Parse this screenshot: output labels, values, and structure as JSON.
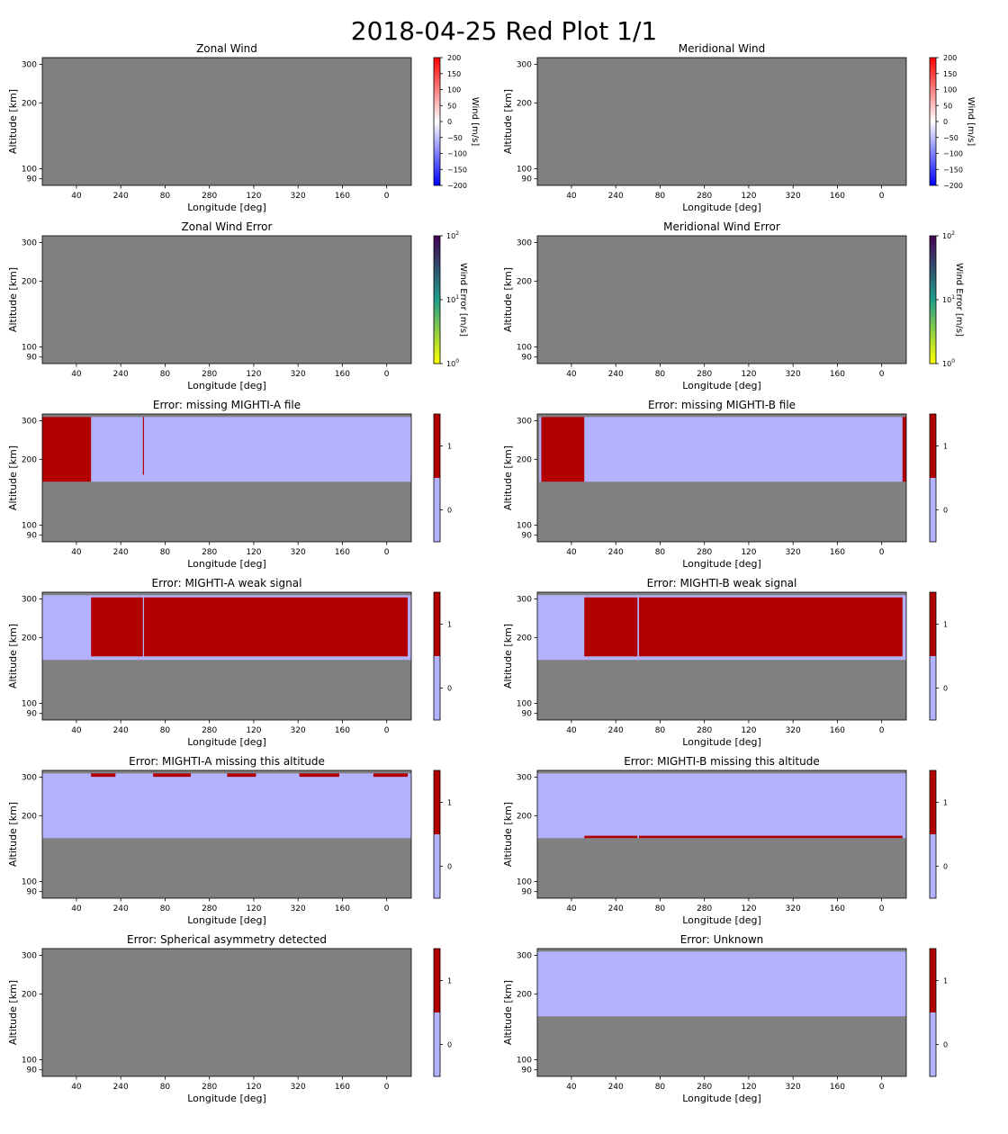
{
  "figure": {
    "title": "2018-04-25 Red Plot 1/1"
  },
  "colors": {
    "nodata": "#808080",
    "flag_off": "#b2b2ff",
    "flag_on": "#b20000",
    "wind_cmap": [
      "#0000ff",
      "#ffffff",
      "#ff0000"
    ],
    "error_cmap": [
      "#ffff00",
      "#1f9e89",
      "#440154"
    ]
  },
  "shared_axes": {
    "xlabel": "Longitude [deg]",
    "ylabel": "Altitude [km]",
    "x_ticklabels": [
      "40",
      "240",
      "80",
      "280",
      "120",
      "320",
      "160",
      "0"
    ],
    "x_tick_positions_deg": [
      40,
      240,
      440,
      640,
      840,
      1040,
      1240,
      1440
    ],
    "xlim": [
      -114,
      1551
    ],
    "yscale": "log",
    "y_ticklabels": [
      "90",
      "100",
      "200",
      "300"
    ],
    "y_tick_values": [
      90,
      100,
      200,
      300
    ],
    "ylim": [
      84,
      322
    ]
  },
  "chart_data": [
    {
      "type": "heatmap",
      "title": "Zonal Wind",
      "panel": "zonal-wind",
      "colorbar": {
        "kind": "wind",
        "label": "Wind [m/s]",
        "range": [
          -200,
          200
        ],
        "ticklabels": [
          "−200",
          "−150",
          "−100",
          "−50",
          "0",
          "50",
          "100",
          "150",
          "200"
        ],
        "tick_values": [
          -200,
          -150,
          -100,
          -50,
          0,
          50,
          100,
          150,
          200
        ]
      },
      "values_note": "all masked (no data)",
      "regions": []
    },
    {
      "type": "heatmap",
      "title": "Meridional Wind",
      "panel": "meridional-wind",
      "colorbar": {
        "kind": "wind",
        "label": "Wind [m/s]",
        "range": [
          -200,
          200
        ],
        "ticklabels": [
          "−200",
          "−150",
          "−100",
          "−50",
          "0",
          "50",
          "100",
          "150",
          "200"
        ],
        "tick_values": [
          -200,
          -150,
          -100,
          -50,
          0,
          50,
          100,
          150,
          200
        ]
      },
      "values_note": "all masked (no data)",
      "regions": []
    },
    {
      "type": "heatmap",
      "title": "Zonal Wind Error",
      "panel": "zonal-wind-error",
      "colorbar": {
        "kind": "error",
        "label": "Wind Error [m/s]",
        "scale": "log",
        "range": [
          1,
          100
        ],
        "ticklabels": [
          {
            "base": "10",
            "exp": "0"
          },
          {
            "base": "10",
            "exp": "1"
          },
          {
            "base": "10",
            "exp": "2"
          }
        ],
        "tick_values": [
          1,
          10,
          100
        ]
      },
      "values_note": "all masked (no data)",
      "regions": []
    },
    {
      "type": "heatmap",
      "title": "Meridional Wind Error",
      "panel": "meridional-wind-error",
      "colorbar": {
        "kind": "error",
        "label": "Wind Error [m/s]",
        "scale": "log",
        "range": [
          1,
          100
        ],
        "ticklabels": [
          {
            "base": "10",
            "exp": "0"
          },
          {
            "base": "10",
            "exp": "1"
          },
          {
            "base": "10",
            "exp": "2"
          }
        ],
        "tick_values": [
          1,
          10,
          100
        ]
      },
      "values_note": "all masked (no data)",
      "regions": []
    },
    {
      "type": "heatmap",
      "title": "Error: missing MIGHTI-A file",
      "panel": "missing-mighti-a-file",
      "colorbar": {
        "kind": "flag",
        "ticklabels": [
          "0",
          "1"
        ],
        "tick_values": [
          0,
          1
        ],
        "range": [
          -0.5,
          1.5
        ]
      },
      "regions": [
        {
          "value": 0,
          "lon": [
            -114,
            1551
          ],
          "alt": [
            158,
            312
          ]
        },
        {
          "value": 1,
          "lon": [
            -114,
            106
          ],
          "alt": [
            158,
            312
          ]
        },
        {
          "value": 1,
          "lon": [
            340,
            345
          ],
          "alt": [
            170,
            312
          ]
        }
      ]
    },
    {
      "type": "heatmap",
      "title": "Error: missing MIGHTI-B file",
      "panel": "missing-mighti-b-file",
      "colorbar": {
        "kind": "flag",
        "ticklabels": [
          "0",
          "1"
        ],
        "tick_values": [
          0,
          1
        ],
        "range": [
          -0.5,
          1.5
        ]
      },
      "regions": [
        {
          "value": 0,
          "lon": [
            -105,
            1551
          ],
          "alt": [
            158,
            312
          ]
        },
        {
          "value": 1,
          "lon": [
            -96,
            98
          ],
          "alt": [
            158,
            312
          ]
        },
        {
          "value": 1,
          "lon": [
            1534,
            1551
          ],
          "alt": [
            158,
            312
          ]
        }
      ]
    },
    {
      "type": "heatmap",
      "title": "Error: MIGHTI-A weak signal",
      "panel": "mighti-a-weak-signal",
      "colorbar": {
        "kind": "flag",
        "ticklabels": [
          "0",
          "1"
        ],
        "tick_values": [
          0,
          1
        ],
        "range": [
          -0.5,
          1.5
        ]
      },
      "regions": [
        {
          "value": 0,
          "lon": [
            -114,
            1551
          ],
          "alt": [
            158,
            312
          ]
        },
        {
          "value": 1,
          "lon": [
            106,
            340
          ],
          "alt": [
            164,
            305
          ]
        },
        {
          "value": 1,
          "lon": [
            345,
            1535
          ],
          "alt": [
            164,
            305
          ]
        }
      ]
    },
    {
      "type": "heatmap",
      "title": "Error: MIGHTI-B weak signal",
      "panel": "mighti-b-weak-signal",
      "colorbar": {
        "kind": "flag",
        "ticklabels": [
          "0",
          "1"
        ],
        "tick_values": [
          0,
          1
        ],
        "range": [
          -0.5,
          1.5
        ]
      },
      "regions": [
        {
          "value": 0,
          "lon": [
            -114,
            1551
          ],
          "alt": [
            158,
            312
          ]
        },
        {
          "value": 1,
          "lon": [
            98,
            338
          ],
          "alt": [
            164,
            305
          ]
        },
        {
          "value": 1,
          "lon": [
            345,
            1534
          ],
          "alt": [
            164,
            305
          ]
        }
      ]
    },
    {
      "type": "heatmap",
      "title": "Error: MIGHTI-A missing this altitude",
      "panel": "mighti-a-missing-altitude",
      "colorbar": {
        "kind": "flag",
        "ticklabels": [
          "0",
          "1"
        ],
        "tick_values": [
          0,
          1
        ],
        "range": [
          -0.5,
          1.5
        ]
      },
      "regions": [
        {
          "value": 0,
          "lon": [
            -114,
            1551
          ],
          "alt": [
            158,
            312
          ]
        },
        {
          "value": 1,
          "lon": [
            106,
            216
          ],
          "alt": [
            301,
            312
          ]
        },
        {
          "value": 1,
          "lon": [
            386,
            556
          ],
          "alt": [
            301,
            312
          ]
        },
        {
          "value": 1,
          "lon": [
            720,
            850
          ],
          "alt": [
            301,
            312
          ]
        },
        {
          "value": 1,
          "lon": [
            1046,
            1226
          ],
          "alt": [
            301,
            312
          ]
        },
        {
          "value": 1,
          "lon": [
            1380,
            1535
          ],
          "alt": [
            301,
            312
          ]
        }
      ]
    },
    {
      "type": "heatmap",
      "title": "Error: MIGHTI-B missing this altitude",
      "panel": "mighti-b-missing-altitude",
      "colorbar": {
        "kind": "flag",
        "ticklabels": [
          "0",
          "1"
        ],
        "tick_values": [
          0,
          1
        ],
        "range": [
          -0.5,
          1.5
        ]
      },
      "regions": [
        {
          "value": 0,
          "lon": [
            -114,
            1551
          ],
          "alt": [
            158,
            312
          ]
        },
        {
          "value": 1,
          "lon": [
            98,
            338
          ],
          "alt": [
            158,
            162
          ]
        },
        {
          "value": 1,
          "lon": [
            345,
            1534
          ],
          "alt": [
            158,
            162
          ]
        }
      ]
    },
    {
      "type": "heatmap",
      "title": "Error: Spherical asymmetry detected",
      "panel": "spherical-asymmetry",
      "colorbar": {
        "kind": "flag",
        "ticklabels": [
          "0",
          "1"
        ],
        "tick_values": [
          0,
          1
        ],
        "range": [
          -0.5,
          1.5
        ]
      },
      "values_note": "all masked (no data)",
      "regions": []
    },
    {
      "type": "heatmap",
      "title": "Error: Unknown",
      "panel": "unknown-error",
      "colorbar": {
        "kind": "flag",
        "ticklabels": [
          "0",
          "1"
        ],
        "tick_values": [
          0,
          1
        ],
        "range": [
          -0.5,
          1.5
        ]
      },
      "regions": [
        {
          "value": 0,
          "lon": [
            -114,
            1551
          ],
          "alt": [
            158,
            312
          ]
        }
      ]
    }
  ]
}
